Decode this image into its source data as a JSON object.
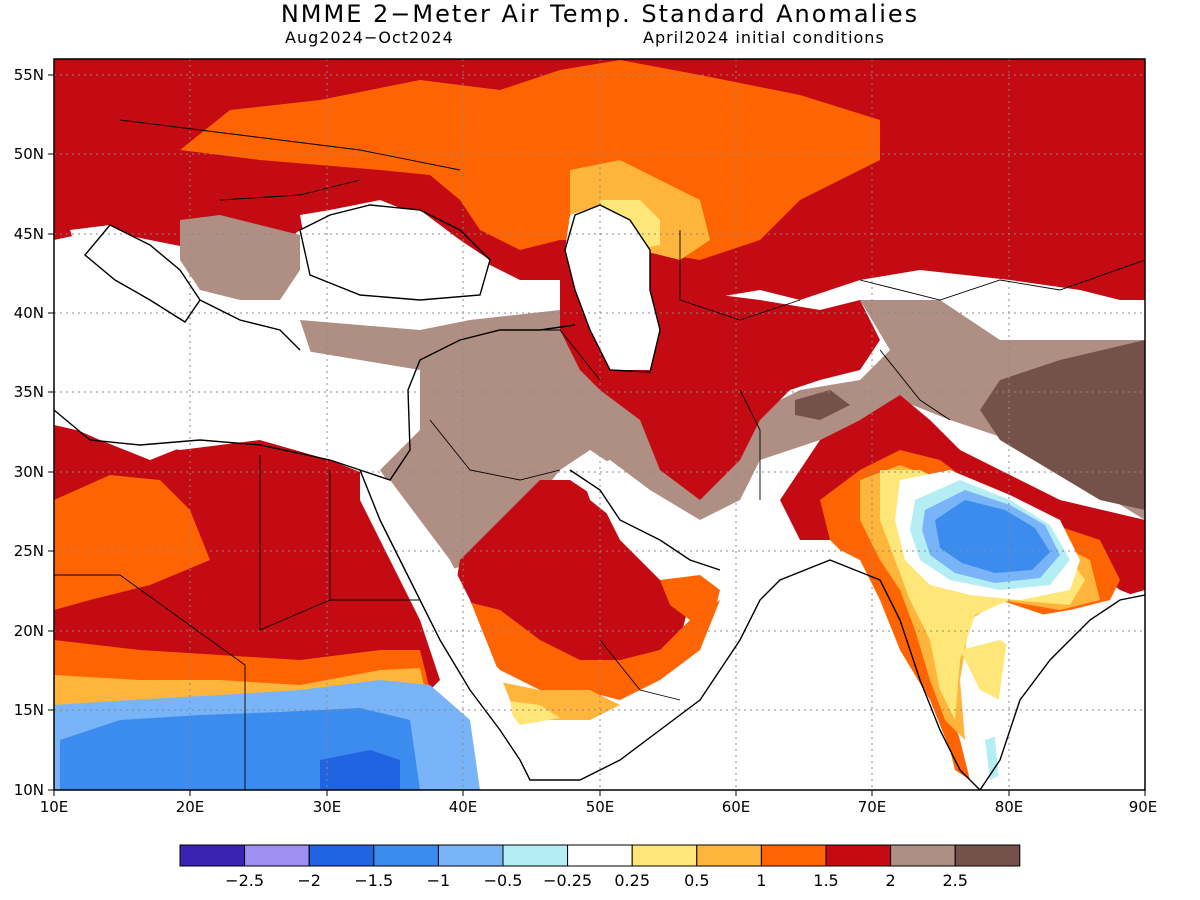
{
  "title": "NMME 2−Meter Air Temp. Standard Anomalies",
  "subtitle_left": "Aug2024−Oct2024",
  "subtitle_right": "April2024 initial conditions",
  "map": {
    "lon_range": [
      10,
      90
    ],
    "lat_range": [
      10,
      56
    ],
    "x_ticks": [
      "10E",
      "20E",
      "30E",
      "40E",
      "50E",
      "60E",
      "70E",
      "80E",
      "90E"
    ],
    "y_ticks": [
      "10N",
      "15N",
      "20N",
      "25N",
      "30N",
      "35N",
      "40N",
      "45N",
      "50N",
      "55N"
    ],
    "grid": true
  },
  "legend": {
    "colors": [
      "#3a22b4",
      "#9f8ff2",
      "#2064e2",
      "#3c8cef",
      "#78b4f7",
      "#b4eef4",
      "#ffffff",
      "#ffe678",
      "#ffb43c",
      "#ff6402",
      "#c40a12",
      "#af8e83",
      "#74524a"
    ],
    "labels": [
      "−2.5",
      "−2",
      "−1.5",
      "−1",
      "−0.5",
      "−0.25",
      "0.25",
      "0.5",
      "1",
      "1.5",
      "2",
      "2.5"
    ]
  },
  "colors": {
    "land_default": "#ffffff",
    "warm_strong": "#c40a12",
    "warm": "#ff6402",
    "tan": "#af8e83",
    "brown": "#74524a",
    "cool": "#3c8cef"
  }
}
